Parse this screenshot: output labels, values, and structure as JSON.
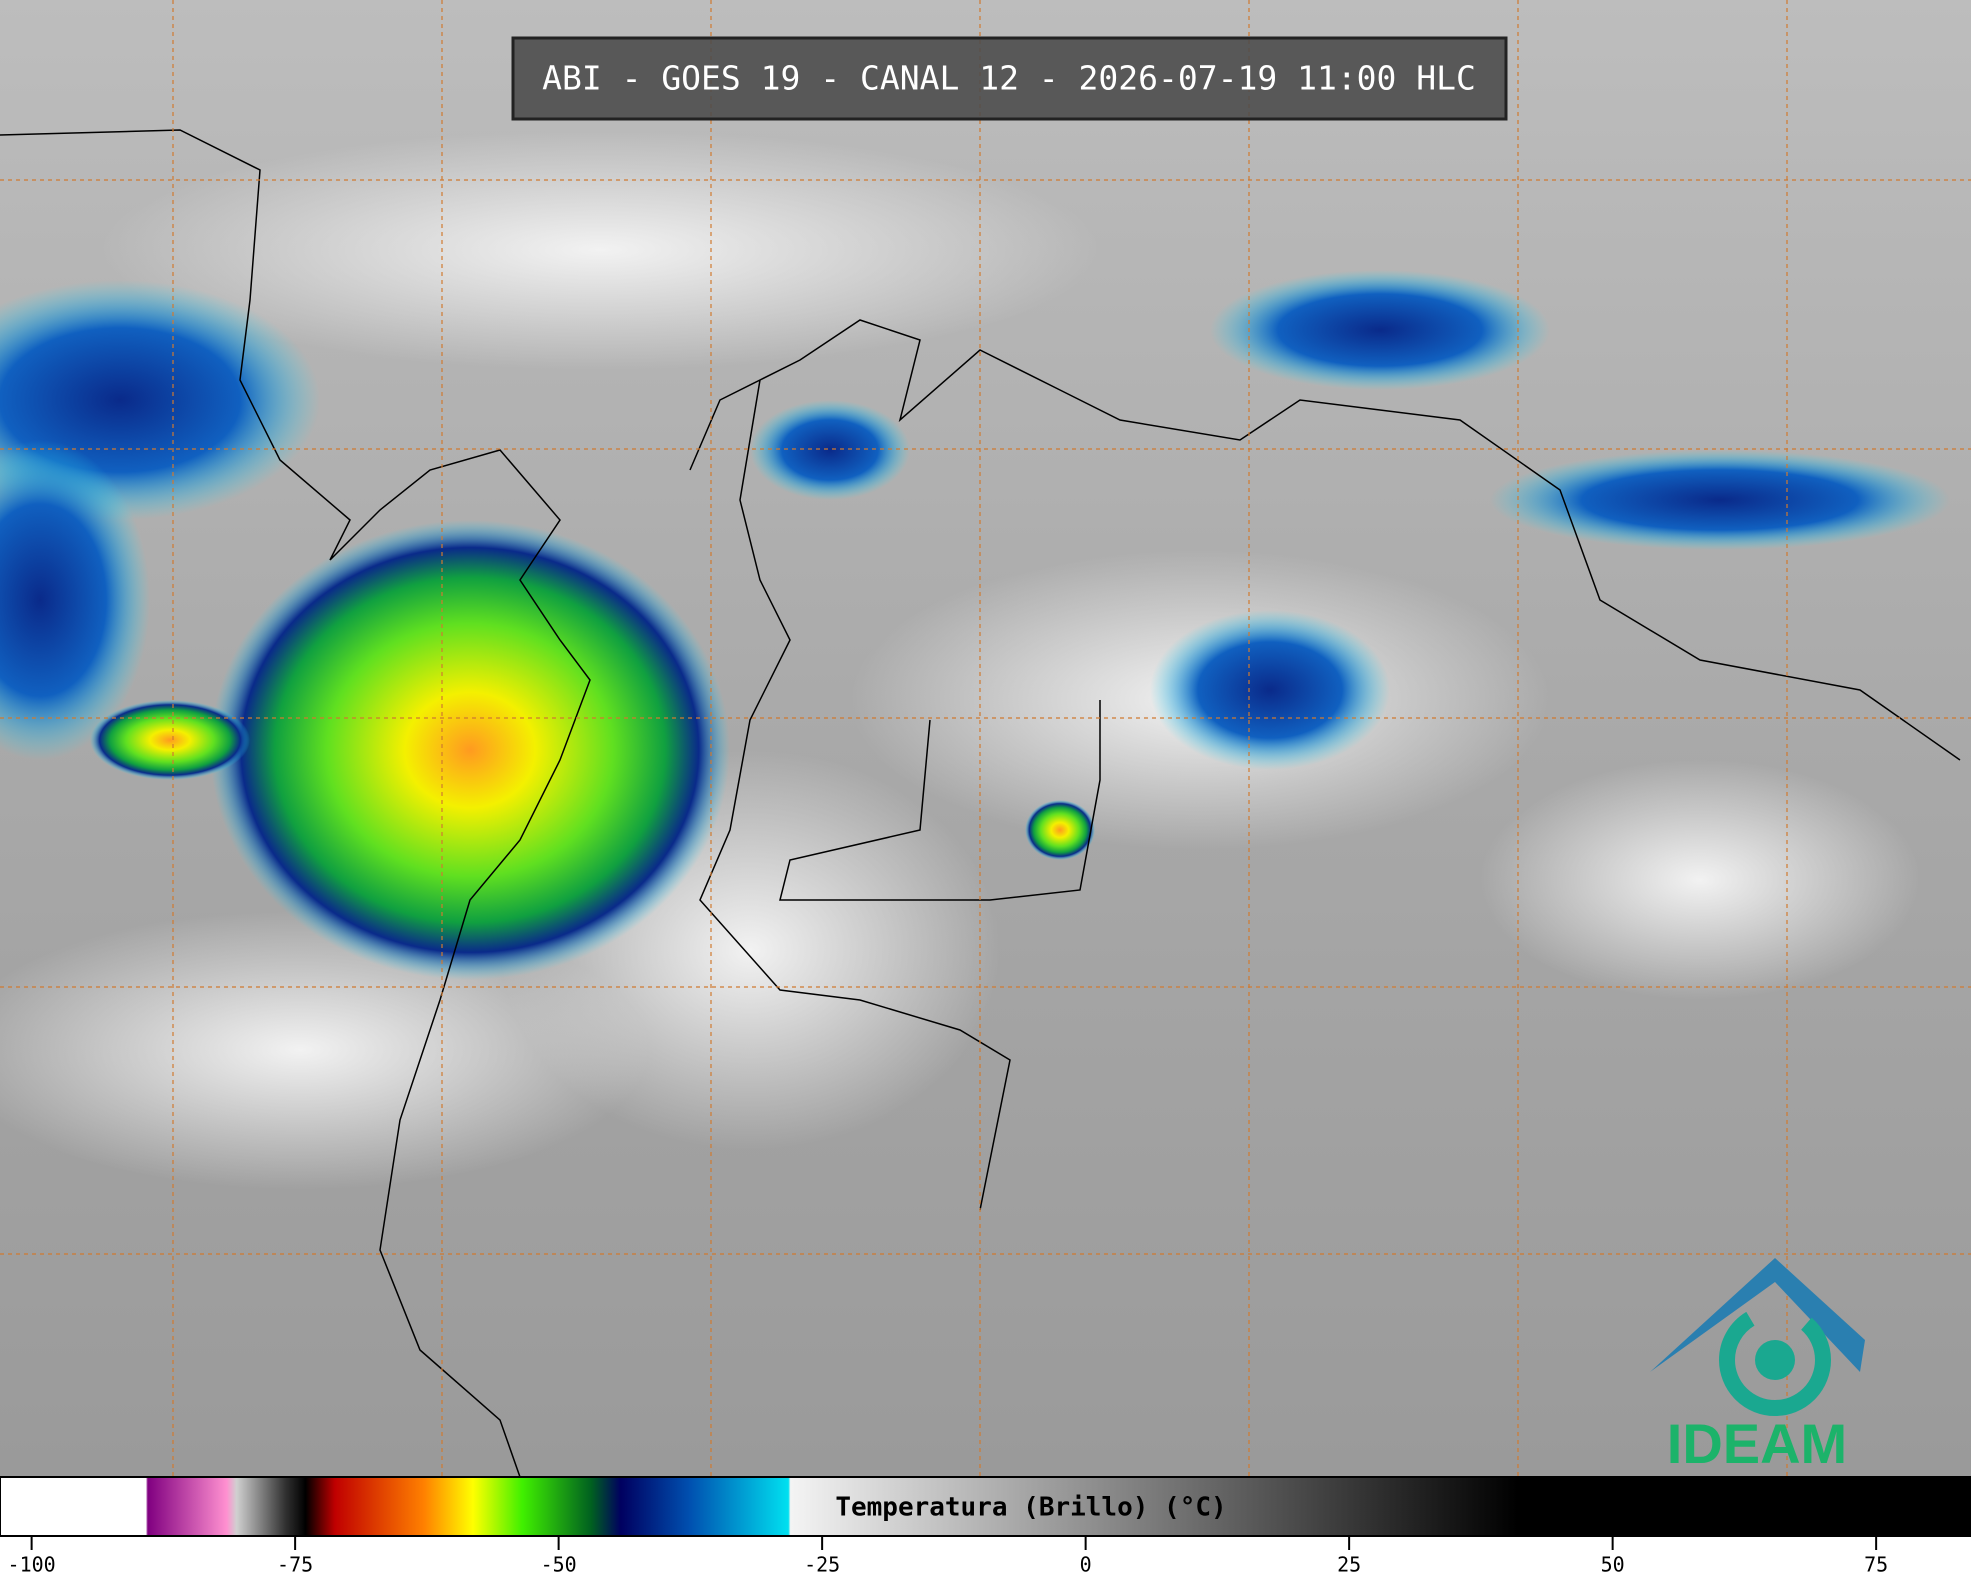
{
  "title": "ABI - GOES 19 - CANAL 12 - 2026-07-19 11:00 HLC",
  "logo": {
    "text": "IDEAM"
  },
  "colorbar": {
    "label": "Temperatura (Brillo) (°C)",
    "xlim": [
      -103,
      84
    ],
    "xticks": [
      -100,
      -75,
      -50,
      -25,
      0,
      25,
      50,
      75
    ]
  }
}
